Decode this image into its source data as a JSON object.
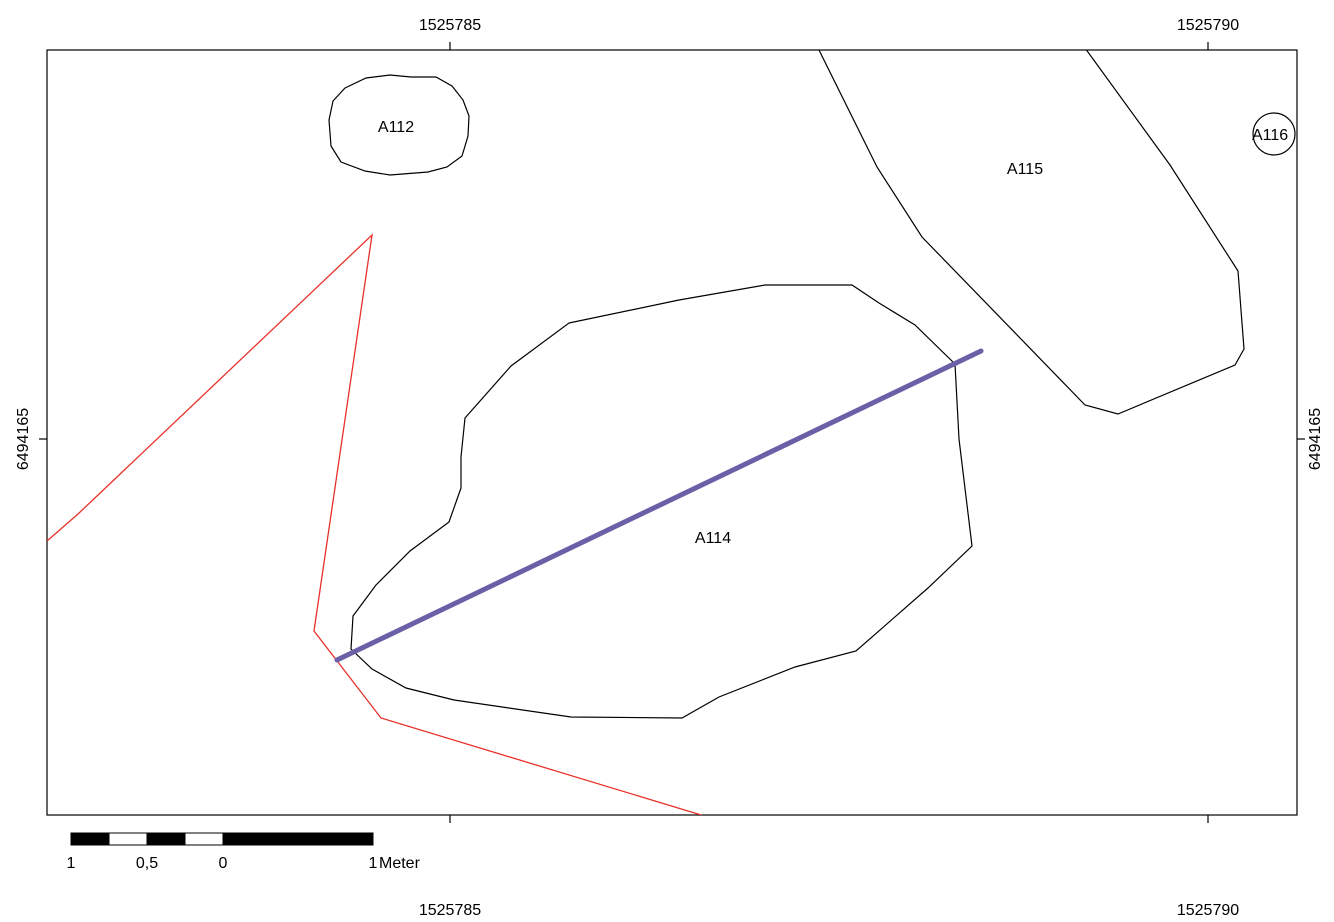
{
  "axes": {
    "x_top_labels": [
      "1525785",
      "1525790"
    ],
    "x_bottom_labels": [
      "1525785",
      "1525790"
    ],
    "y_left_label": "6494165",
    "y_right_label": "6494165"
  },
  "features": {
    "a112": "A112",
    "a114": "A114",
    "a115": "A115",
    "a116": "A116"
  },
  "scalebar": {
    "labels": [
      "1",
      "0,5",
      "0",
      "1"
    ],
    "unit": "Meter"
  },
  "colors": {
    "boundary_line": "#e8312a",
    "section_line": "#6a60a8",
    "feature_outline": "#000000"
  }
}
